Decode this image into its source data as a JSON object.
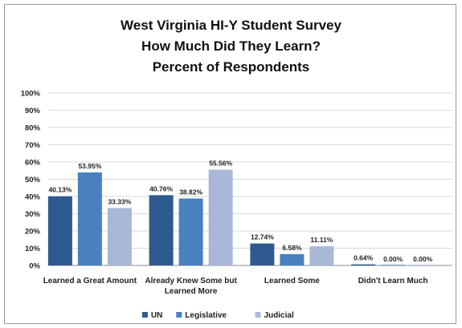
{
  "chart_data": {
    "type": "bar",
    "title_lines": [
      "West Virginia HI-Y Student Survey",
      "How Much Did They Learn?",
      "Percent of Respondents"
    ],
    "categories": [
      [
        "Learned a Great Amount"
      ],
      [
        "Already Knew Some but",
        "Learned More"
      ],
      [
        "Learned Some"
      ],
      [
        "Didn't Learn Much"
      ]
    ],
    "series": [
      {
        "name": "UN",
        "color": "#2f5a8f",
        "values": [
          40.13,
          40.76,
          12.74,
          0.64
        ],
        "labels": [
          "40.13%",
          "40.76%",
          "12.74%",
          "0.64%"
        ]
      },
      {
        "name": "Legislative",
        "color": "#4a7fc0",
        "values": [
          53.95,
          38.82,
          6.58,
          0.0
        ],
        "labels": [
          "53.95%",
          "38.82%",
          "6.58%",
          "0.00%"
        ]
      },
      {
        "name": "Judicial",
        "color": "#aab8d8",
        "values": [
          33.33,
          55.56,
          11.11,
          0.0
        ],
        "labels": [
          "33.33%",
          "55.56%",
          "11.11%",
          "0.00%"
        ]
      }
    ],
    "ylim": [
      0,
      100
    ],
    "yticks": [
      "0%",
      "10%",
      "20%",
      "30%",
      "40%",
      "50%",
      "60%",
      "70%",
      "80%",
      "90%",
      "100%"
    ],
    "grid": true,
    "legend_position": "bottom",
    "colors": {
      "grid": "#d9d9d9",
      "axis": "#8c8c8c",
      "text": "#222222"
    }
  }
}
